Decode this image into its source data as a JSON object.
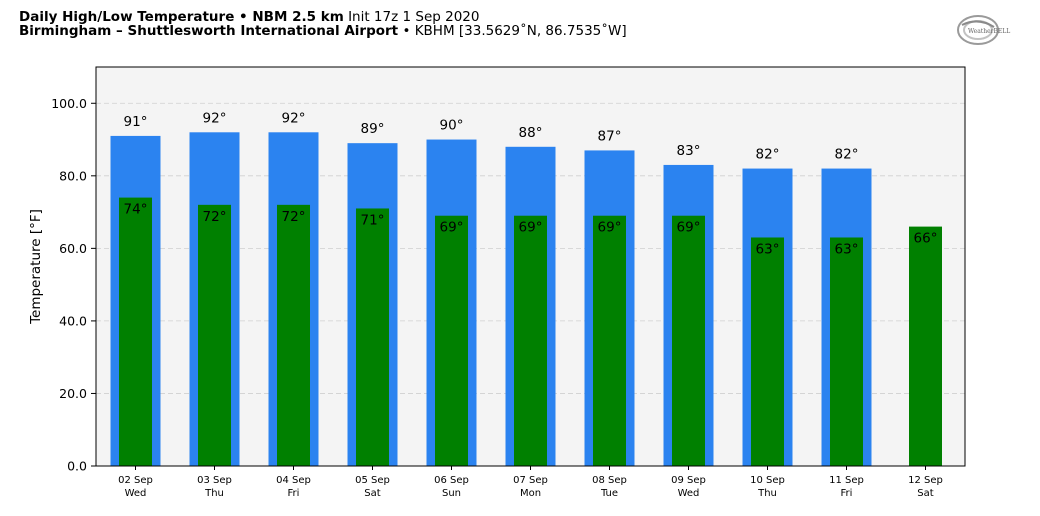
{
  "header": {
    "title_bold": "Daily High/Low Temperature • NBM 2.5 km",
    "title_init": "Init 17z 1 Sep 2020",
    "location_bold": "Birmingham – Shuttlesworth International Airport",
    "location_detail": "• KBHM [33.5629˚N, 86.7535˚W]"
  },
  "logo": {
    "text": "WeatherBELL",
    "icon": "weatherbell-logo"
  },
  "chart_data": {
    "type": "bar",
    "ylabel": "Temperature [°F]",
    "ylim": [
      0,
      110
    ],
    "yticks": [
      "0.0",
      "20.0",
      "40.0",
      "60.0",
      "80.0",
      "100.0"
    ],
    "grid": true,
    "categories": [
      [
        "02 Sep",
        "Wed"
      ],
      [
        "03 Sep",
        "Thu"
      ],
      [
        "04 Sep",
        "Fri"
      ],
      [
        "05 Sep",
        "Sat"
      ],
      [
        "06 Sep",
        "Sun"
      ],
      [
        "07 Sep",
        "Mon"
      ],
      [
        "08 Sep",
        "Tue"
      ],
      [
        "09 Sep",
        "Wed"
      ],
      [
        "10 Sep",
        "Thu"
      ],
      [
        "11 Sep",
        "Fri"
      ],
      [
        "12 Sep",
        "Sat"
      ]
    ],
    "series": [
      {
        "values": [
          91,
          92,
          92,
          89,
          90,
          88,
          87,
          83,
          82,
          82,
          null
        ],
        "labels": [
          "91°",
          "92°",
          "92°",
          "89°",
          "90°",
          "88°",
          "87°",
          "83°",
          "82°",
          "82°",
          ""
        ],
        "color": "#2b83f0"
      },
      {
        "values": [
          74,
          72,
          72,
          71,
          69,
          69,
          69,
          69,
          63,
          63,
          66
        ],
        "labels": [
          "74°",
          "72°",
          "72°",
          "71°",
          "69°",
          "69°",
          "69°",
          "69°",
          "63°",
          "63°",
          "66°"
        ],
        "color": "#008000"
      }
    ],
    "plot_background": "#f4f4f4"
  }
}
